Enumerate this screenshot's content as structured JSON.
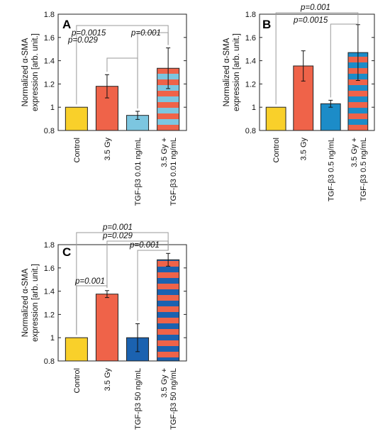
{
  "chart_data": [
    {
      "panel": "A",
      "type": "bar",
      "ylabel": "Normalized α-SMA expression [arb. unit.]",
      "ylim": [
        0.8,
        1.8
      ],
      "yticks": [
        "0.8",
        "1",
        "1.2",
        "1.4",
        "1.6",
        "1.8"
      ],
      "categories": [
        "Control",
        "3.5 Gy",
        "TGF-β3 0.01 ng/mL",
        "3.5 Gy + TGF-β3 0.01 ng/mL"
      ],
      "values": [
        1.0,
        1.18,
        0.93,
        1.335
      ],
      "errors": [
        0,
        0.1,
        0.035,
        0.175
      ],
      "colors": [
        "#f9d02a",
        "#ef6349",
        "#7cc6e0",
        "#ef6349"
      ],
      "stripe_color": "#7cc6e0",
      "striped": [
        false,
        false,
        false,
        true
      ],
      "comparisons": [
        {
          "from": 0,
          "to": 3,
          "label": "p=0.0015"
        },
        {
          "from": 2,
          "to": 3,
          "label": "p=0.001"
        },
        {
          "from": 1,
          "to": 2,
          "label": "p=0.029"
        }
      ]
    },
    {
      "panel": "B",
      "type": "bar",
      "ylabel": "Normalized α-SMA expression [arb. unit.]",
      "ylim": [
        0.8,
        1.8
      ],
      "yticks": [
        "0.8",
        "1",
        "1.2",
        "1.4",
        "1.6",
        "1.8"
      ],
      "categories": [
        "Control",
        "3.5 Gy",
        "TGF-β3 0.5 ng/mL",
        "3.5 Gy + TGF-β3 0.5 ng/mL"
      ],
      "values": [
        1.0,
        1.355,
        1.03,
        1.47
      ],
      "errors": [
        0,
        0.13,
        0.03,
        0.24
      ],
      "colors": [
        "#f9d02a",
        "#ef6349",
        "#1c8cc8",
        "#ef6349"
      ],
      "stripe_color": "#1c8cc8",
      "striped": [
        false,
        false,
        false,
        true
      ],
      "comparisons": [
        {
          "from": 0,
          "to": 3,
          "label": "p=0.001"
        },
        {
          "from": 2,
          "to": 3,
          "label": "p=0.0015"
        }
      ]
    },
    {
      "panel": "C",
      "type": "bar",
      "ylabel": "Normalized α-SMA expression [arb. unit.]",
      "ylim": [
        0.8,
        1.8
      ],
      "yticks": [
        "0.8",
        "1",
        "1.2",
        "1.4",
        "1.6",
        "1.8"
      ],
      "categories": [
        "Control",
        "3.5 Gy",
        "TGF-β3 50 ng/mL",
        "3.5 Gy + TGF-β3 50 ng/mL"
      ],
      "values": [
        1.0,
        1.375,
        1.0,
        1.67
      ],
      "errors": [
        0,
        0.03,
        0.12,
        0.055
      ],
      "colors": [
        "#f9d02a",
        "#ef6349",
        "#1b62b0",
        "#ef6349"
      ],
      "stripe_color": "#1b62b0",
      "striped": [
        false,
        false,
        false,
        true
      ],
      "comparisons": [
        {
          "from": 0,
          "to": 3,
          "label": "p=0.001"
        },
        {
          "from": 1,
          "to": 3,
          "label": "p=0.029"
        },
        {
          "from": 2,
          "to": 3,
          "label": "p=0.001"
        },
        {
          "from": 0,
          "to": 1,
          "label": "p=0.001"
        }
      ]
    }
  ]
}
